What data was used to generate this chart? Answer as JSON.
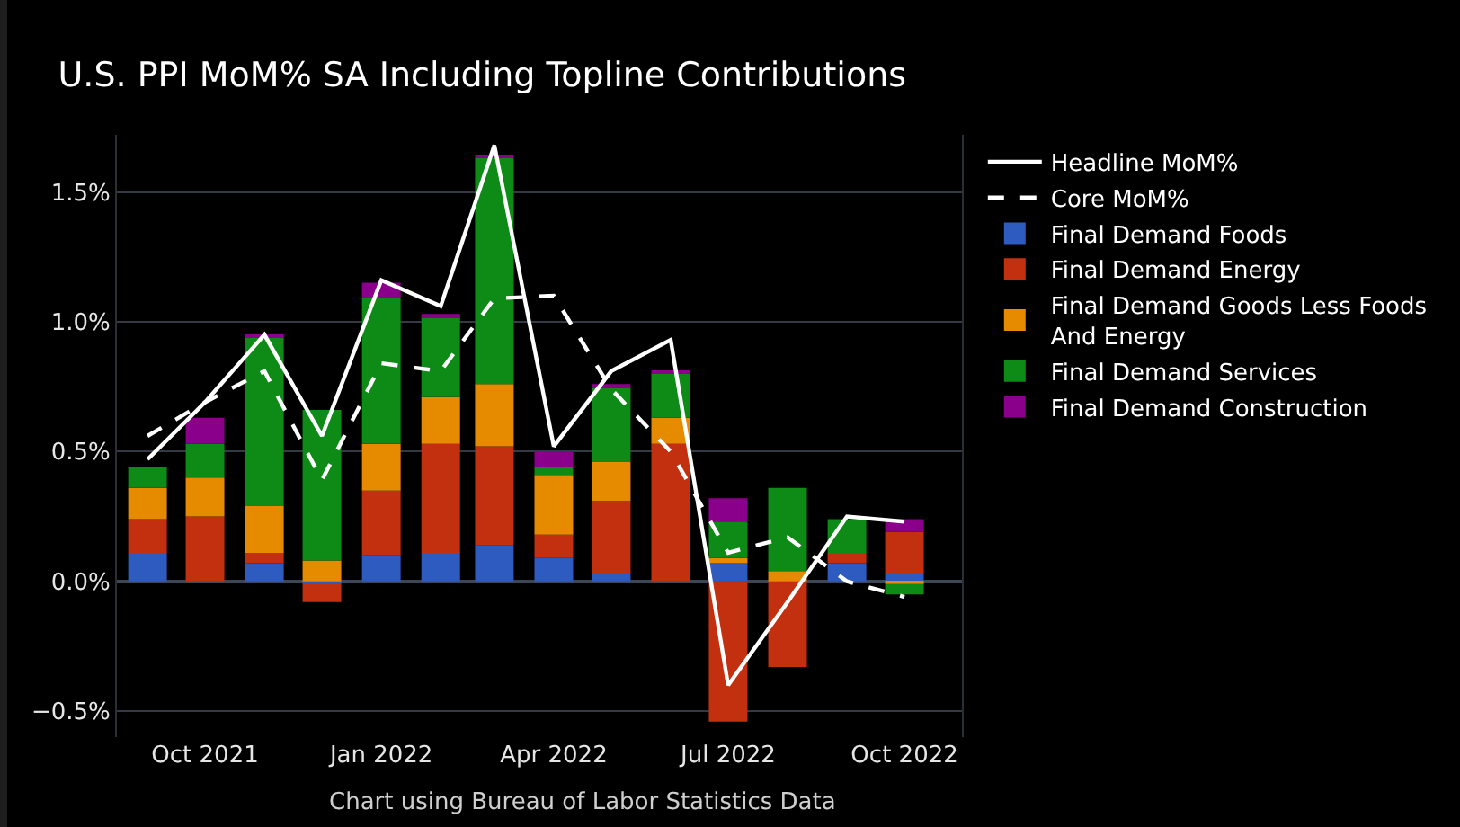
{
  "chart_data": {
    "type": "bar",
    "title": "U.S. PPI MoM% SA Including Topline Contributions",
    "x": [
      "2021-09",
      "2021-10",
      "2021-11",
      "2021-12",
      "2022-01",
      "2022-02",
      "2022-03",
      "2022-04",
      "2022-05",
      "2022-06",
      "2022-07",
      "2022-08",
      "2022-09",
      "2022-10"
    ],
    "stacked": true,
    "series": [
      {
        "name": "Headline MoM%",
        "type": "line",
        "line_style": "solid",
        "color": "#ffffff",
        "values": [
          0.47,
          0.69,
          0.95,
          0.56,
          1.16,
          1.06,
          1.68,
          0.52,
          0.81,
          0.93,
          -0.4,
          -0.08,
          0.25,
          0.23
        ]
      },
      {
        "name": "Core MoM%",
        "type": "line",
        "line_style": "dashed",
        "color": "#ffffff",
        "values": [
          0.56,
          0.69,
          0.81,
          0.39,
          0.84,
          0.81,
          1.09,
          1.1,
          0.74,
          0.5,
          0.11,
          0.17,
          0.0,
          -0.06
        ]
      },
      {
        "name": "Final Demand Foods",
        "color": "#2e5bbf",
        "values": [
          0.11,
          0.0,
          0.07,
          -0.01,
          0.1,
          0.11,
          0.14,
          0.09,
          0.03,
          0.0,
          0.07,
          0.0,
          0.07,
          0.03
        ]
      },
      {
        "name": "Final Demand Energy",
        "color": "#c3300f",
        "values": [
          0.13,
          0.25,
          0.04,
          -0.07,
          0.25,
          0.42,
          0.38,
          0.09,
          0.28,
          0.53,
          -0.54,
          -0.33,
          0.04,
          0.16
        ]
      },
      {
        "name": "Final Demand Goods Less Foods And Energy",
        "color": "#e68a00",
        "values": [
          0.12,
          0.15,
          0.18,
          0.08,
          0.18,
          0.18,
          0.24,
          0.23,
          0.15,
          0.1,
          0.02,
          0.04,
          0.0,
          -0.01
        ]
      },
      {
        "name": "Final Demand Services",
        "color": "#0e8a17",
        "values": [
          0.08,
          0.13,
          0.65,
          0.58,
          0.56,
          0.31,
          0.87,
          0.03,
          0.29,
          0.17,
          0.14,
          0.32,
          0.13,
          -0.04
        ]
      },
      {
        "name": "Final Demand Construction",
        "color": "#8b008b",
        "values": [
          0.0,
          0.1,
          0.01,
          0.0,
          0.06,
          0.01,
          0.01,
          0.06,
          0.01,
          0.01,
          0.09,
          0.0,
          null,
          0.05
        ]
      }
    ],
    "xlim": [
      "2021-08-16",
      "2022-10-31"
    ],
    "xticks": [
      {
        "value": "2021-10",
        "label": "Oct 2021"
      },
      {
        "value": "2022-01",
        "label": "Jan 2022"
      },
      {
        "value": "2022-04",
        "label": "Apr 2022"
      },
      {
        "value": "2022-07",
        "label": "Jul 2022"
      },
      {
        "value": "2022-10",
        "label": "Oct 2022"
      }
    ],
    "ylim": [
      -0.6,
      1.72
    ],
    "yticks": [
      {
        "value": -0.5,
        "label": "−0.5%"
      },
      {
        "value": 0,
        "label": "0.0%"
      },
      {
        "value": 0.5,
        "label": "0.5%"
      },
      {
        "value": 1.0,
        "label": "1.0%"
      },
      {
        "value": 1.5,
        "label": "1.5%"
      }
    ],
    "grid": "y",
    "legend": "right",
    "marker": "none",
    "annotations": [
      "Chart using Bureau of Labor Statistics Data"
    ]
  }
}
